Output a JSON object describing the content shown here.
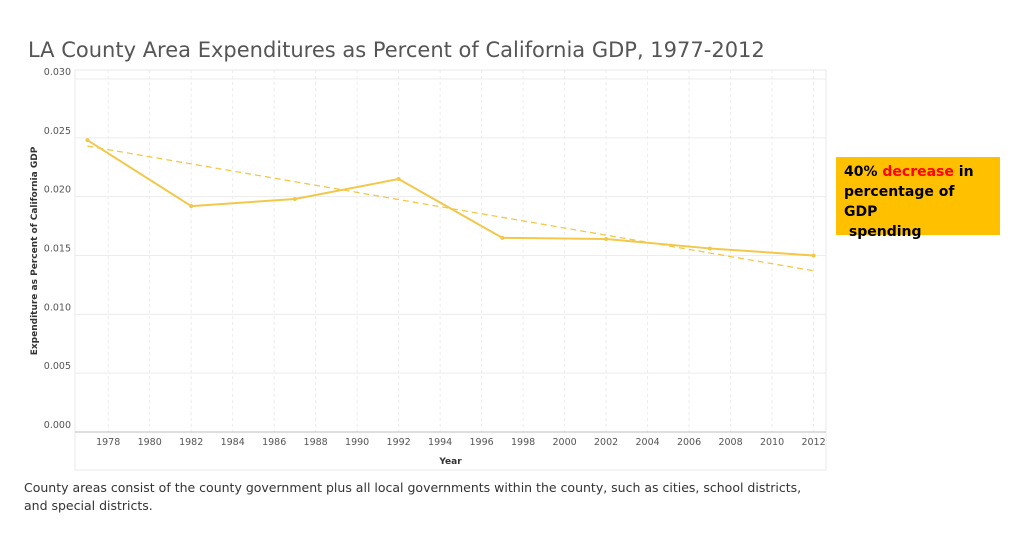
{
  "title": "LA County Area Expenditures as Percent of California GDP, 1977-2012",
  "callout": {
    "prefix": "40% ",
    "highlight": "decrease",
    "suffix_line1": " in",
    "line2": "percentage of GDP",
    "line3": " spending",
    "background": "#ffc000",
    "highlight_color": "#ff0000"
  },
  "footnote": "County areas consist of the county government plus all local governments within the county, such as cities, school districts, and special districts.",
  "colors": {
    "line": "#f2c84b",
    "trend": "#f2c84b",
    "grid": "#ececec"
  },
  "chart_data": {
    "type": "line",
    "title": "LA County Area Expenditures as Percent of California GDP, 1977-2012",
    "xlabel": "Year",
    "ylabel": "Expenditure as Percent of California GDP",
    "xlim": [
      1976.4,
      2012.6
    ],
    "ylim": [
      0,
      0.03
    ],
    "x_ticks": [
      1978,
      1980,
      1982,
      1984,
      1986,
      1988,
      1990,
      1992,
      1994,
      1996,
      1998,
      2000,
      2002,
      2004,
      2006,
      2008,
      2010,
      2012
    ],
    "y_ticks": [
      0,
      0.005,
      0.01,
      0.015,
      0.02,
      0.025,
      0.03
    ],
    "y_tick_labels": [
      "0.000",
      "0.005",
      "0.010",
      "0.015",
      "0.020",
      "0.025",
      "0.030"
    ],
    "grid": true,
    "series": [
      {
        "x": [
          1977,
          1982,
          1987,
          1992,
          1997,
          2002,
          2007,
          2012
        ],
        "y": [
          0.0248,
          0.0192,
          0.0198,
          0.0215,
          0.0165,
          0.0164,
          0.0156,
          0.015
        ]
      }
    ],
    "trendline": {
      "style": "dashed",
      "x": [
        1977,
        2012
      ],
      "y": [
        0.0243,
        0.0137
      ]
    }
  }
}
